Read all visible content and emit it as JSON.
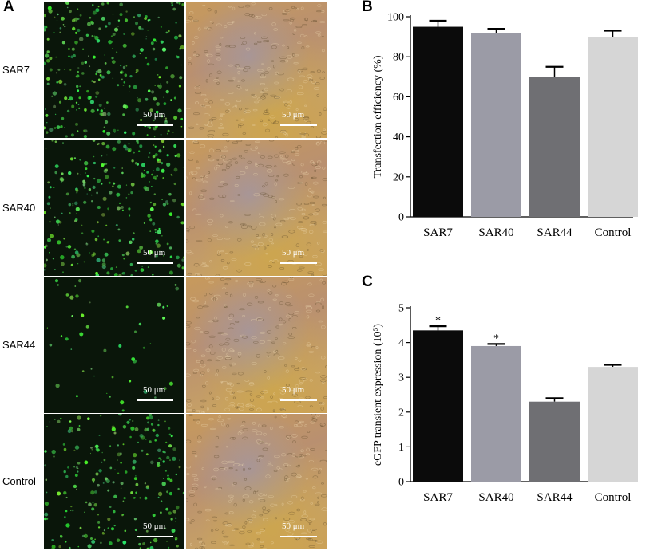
{
  "panels": {
    "a_label": "A",
    "b_label": "B",
    "c_label": "C"
  },
  "micrographs": {
    "row_labels": [
      "SAR7",
      "SAR40",
      "SAR44",
      "Control"
    ],
    "scale_bar_text": "50 μm",
    "fluorescence_density": [
      0.9,
      0.85,
      0.15,
      0.75
    ]
  },
  "chart_data": [
    {
      "type": "bar",
      "title": "",
      "categories": [
        "SAR7",
        "SAR40",
        "SAR44",
        "Control"
      ],
      "values": [
        95,
        92,
        70,
        90
      ],
      "errors": [
        3,
        2,
        5,
        3
      ],
      "ylabel": "Transfection efficiency (%)",
      "xlabel": "",
      "ylim": [
        0,
        100
      ],
      "yticks": [
        "0",
        "20",
        "40",
        "60",
        "80",
        "100"
      ],
      "colors": [
        "#0b0b0b",
        "#9b9ba6",
        "#6f6f73",
        "#d6d6d6"
      ],
      "annotations": [
        "",
        "",
        "",
        ""
      ]
    },
    {
      "type": "bar",
      "title": "",
      "categories": [
        "SAR7",
        "SAR40",
        "SAR44",
        "Control"
      ],
      "values": [
        4.35,
        3.9,
        2.3,
        3.3
      ],
      "errors": [
        0.12,
        0.06,
        0.1,
        0.06
      ],
      "ylabel": "eGFP transient expression (10⁵)",
      "xlabel": "",
      "ylim": [
        0,
        5
      ],
      "yticks": [
        "0",
        "1",
        "2",
        "3",
        "4",
        "5"
      ],
      "colors": [
        "#0b0b0b",
        "#9b9ba6",
        "#6f6f73",
        "#d6d6d6"
      ],
      "annotations": [
        "*",
        "*",
        "",
        ""
      ]
    }
  ]
}
